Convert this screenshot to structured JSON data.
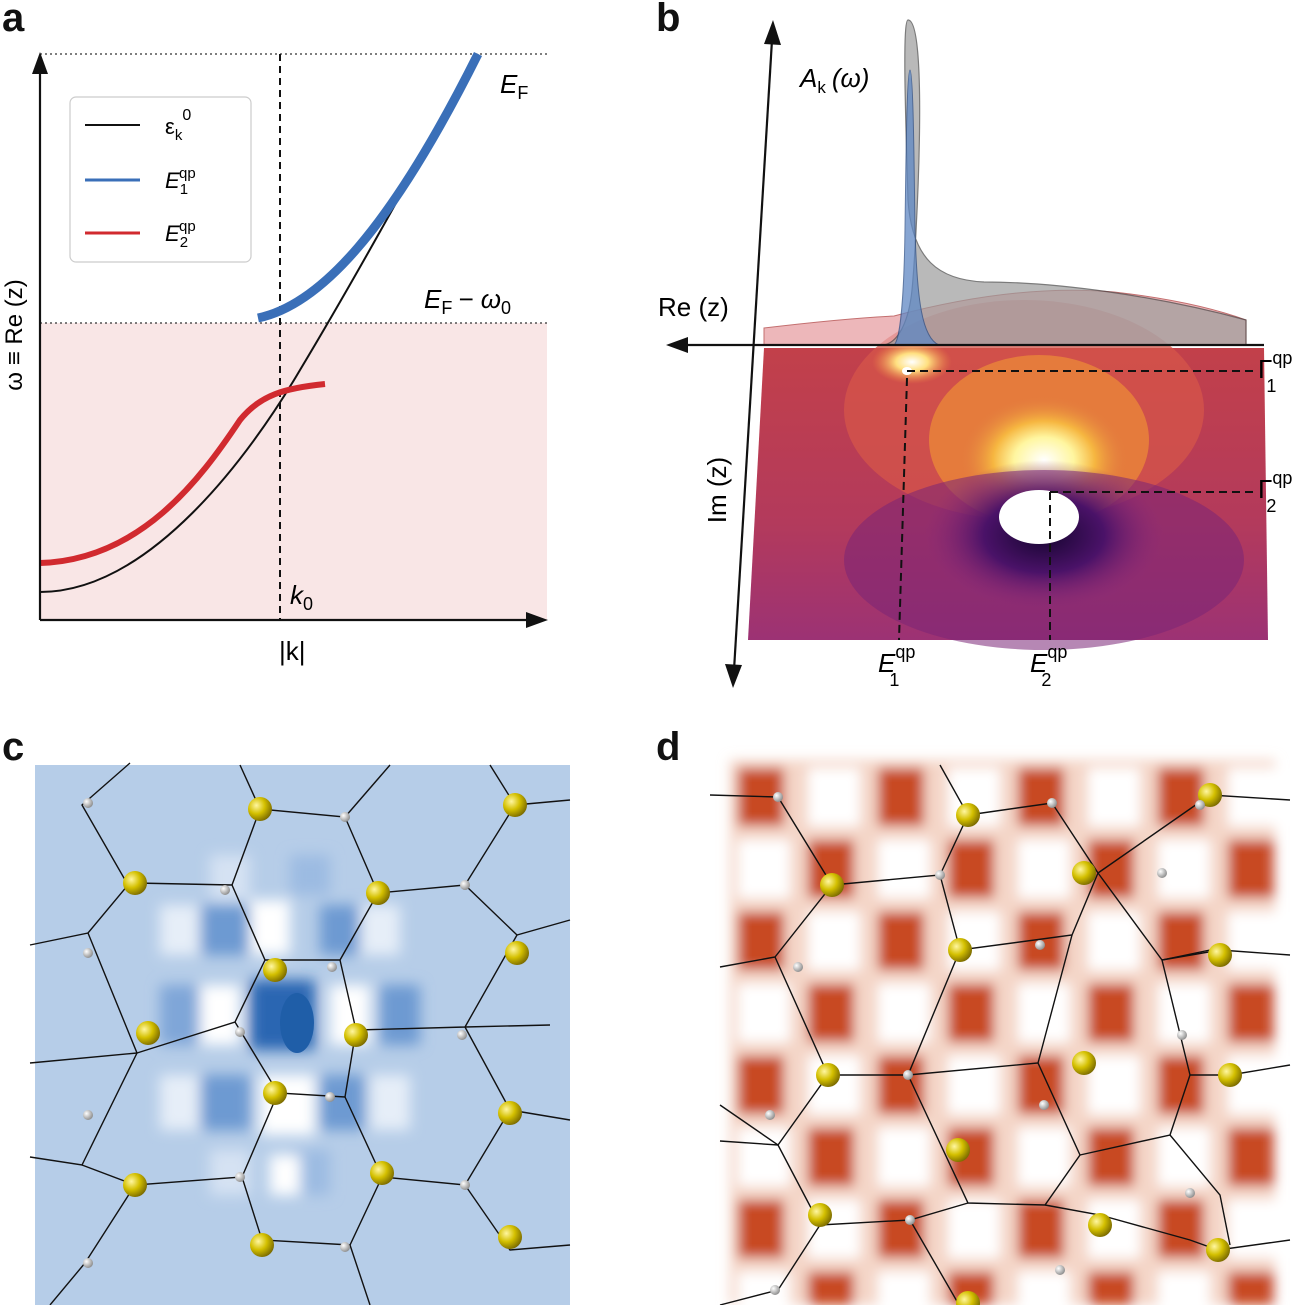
{
  "panels": {
    "a": "a",
    "b": "b",
    "c": "c",
    "d": "d"
  },
  "panel_a": {
    "chart_data": {
      "type": "line",
      "xlabel": "|k|",
      "ylabel": "ω ≡ Re (z)",
      "series": [
        {
          "name": "ε_k^0",
          "color": "#111111"
        },
        {
          "name": "E_1^qp",
          "color": "#3a6fb8"
        },
        {
          "name": "E_2^qp",
          "color": "#d12a2f"
        }
      ],
      "annotations": {
        "ef": "E",
        "ef_sub": "F",
        "ef_minus": "E",
        "ef_minus_sub": "F",
        "ef_minus_rest": "− ω",
        "ef_minus_rest_sub": "0",
        "k0": "k",
        "k0_sub": "0"
      }
    },
    "legend": [
      {
        "symbol": "ε",
        "sub": "k",
        "sup": "0",
        "color": "#111111"
      },
      {
        "symbol": "E",
        "sub": "1",
        "sup": "qp",
        "color": "#3a6fb8"
      },
      {
        "symbol": "E",
        "sub": "2",
        "sup": "qp",
        "color": "#d12a2f"
      }
    ]
  },
  "panel_b": {
    "re_label": "Re (z)",
    "im_label": "Im (z)",
    "spectral_label": "A",
    "spectral_sub": "k",
    "spectral_arg": "(ω)",
    "gamma1": "Γ",
    "gamma1_sup": "qp",
    "gamma1_sub": "1",
    "gamma2": "Γ",
    "gamma2_sup": "qp",
    "gamma2_sub": "2",
    "e1": "E",
    "e1_sup": "qp",
    "e1_sub": "1",
    "e2": "E",
    "e2_sup": "qp",
    "e2_sub": "2"
  },
  "colors": {
    "shade": "#f9e6e6",
    "blue": "#3a6fb8",
    "red": "#d12a2f",
    "atom_yellow": "#c9b800"
  }
}
